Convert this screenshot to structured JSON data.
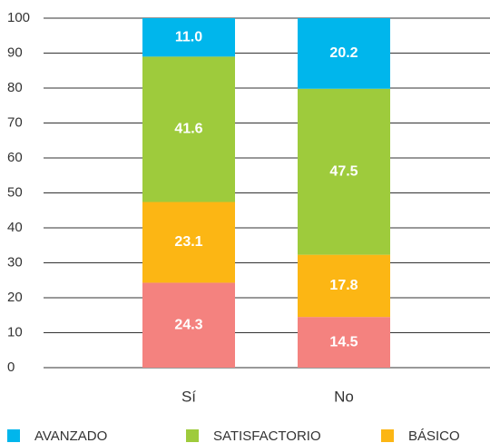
{
  "chart_data": {
    "type": "stacked_bar",
    "categories": [
      "Sí",
      "No"
    ],
    "series": [
      {
        "color": "#f4827f",
        "values": [
          24.3,
          14.5
        ]
      },
      {
        "name": "BÁSICO",
        "color": "#fcb614",
        "values": [
          23.1,
          17.8
        ]
      },
      {
        "name": "SATISFACTORIO",
        "color": "#9ecb3c",
        "values": [
          41.6,
          47.5
        ]
      },
      {
        "name": "AVANZADO",
        "color": "#00b6ec",
        "values": [
          11,
          20.2
        ],
        "value_labels": [
          "11.0",
          "20.2"
        ]
      }
    ],
    "ylim": [
      0,
      100
    ],
    "yticks": [
      0,
      10,
      20,
      30,
      40,
      50,
      60,
      70,
      80,
      90,
      100
    ],
    "grid": true
  }
}
